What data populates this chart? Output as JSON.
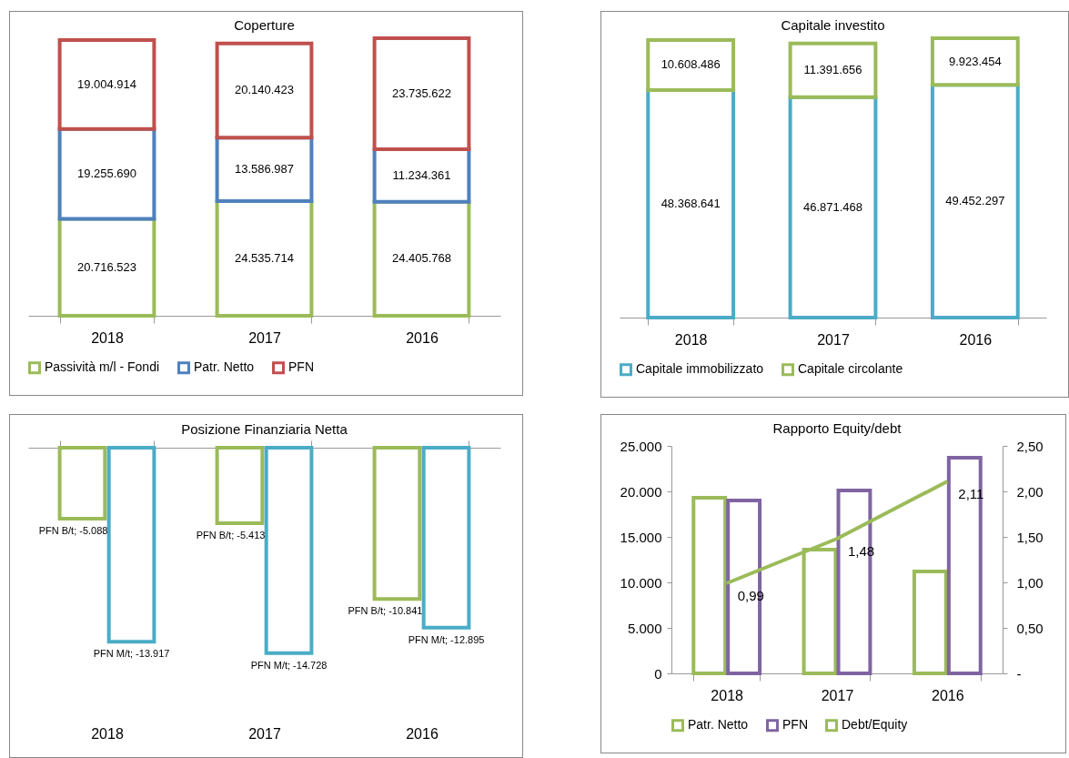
{
  "chart_data": [
    {
      "type": "bar",
      "title": "Coperture",
      "categories": [
        "2018",
        "2017",
        "2016"
      ],
      "stacked": true,
      "legend": "bottom",
      "series": [
        {
          "name": "Passività m/l - Fondi",
          "color": "#9bbb59",
          "values": [
            20716523,
            24535714,
            24405768
          ],
          "value_labels": [
            "20.716.523",
            "24.535.714",
            "24.405.768"
          ]
        },
        {
          "name": "Patr. Netto",
          "color": "#4f81bd",
          "values": [
            19255690,
            13586987,
            11234361
          ],
          "value_labels": [
            "19.255.690",
            "13.586.987",
            "11.234.361"
          ]
        },
        {
          "name": "PFN",
          "color": "#c0504d",
          "values": [
            19004914,
            20140423,
            23735622
          ],
          "value_labels": [
            "19.004.914",
            "20.140.423",
            "23.735.622"
          ]
        }
      ]
    },
    {
      "type": "bar",
      "title": "Capitale  investito",
      "categories": [
        "2018",
        "2017",
        "2016"
      ],
      "stacked": true,
      "legend": "bottom",
      "series": [
        {
          "name": "Capitale immobilizzato",
          "color": "#4bacc6",
          "values": [
            48368641,
            46871468,
            49452297
          ],
          "value_labels": [
            "48.368.641",
            "46.871.468",
            "49.452.297"
          ]
        },
        {
          "name": "Capitale circolante",
          "color": "#9bbb59",
          "values": [
            10608486,
            11391656,
            9923454
          ],
          "value_labels": [
            "10.608.486",
            "11.391.656",
            "9.923.454"
          ]
        }
      ]
    },
    {
      "type": "bar",
      "title": "Posizione Finanziaria Netta",
      "categories": [
        "2018",
        "2017",
        "2016"
      ],
      "series": [
        {
          "color": "#9bbb59",
          "values": [
            -5088,
            -5413,
            -10841
          ],
          "value_labels": [
            "PFN B/t; -5.088",
            "PFN B/t; -5.413",
            "PFN B/t; -10.841"
          ]
        },
        {
          "color": "#4bacc6",
          "values": [
            -13917,
            -14728,
            -12895
          ],
          "value_labels": [
            "PFN M/t; -13.917",
            "PFN M/t; -14.728",
            "PFN M/t; -12.895"
          ]
        }
      ]
    },
    {
      "type": "bar",
      "title": "Rapporto Equity/debt",
      "categories": [
        "2018",
        "2017",
        "2016"
      ],
      "legend": "bottom",
      "ylim": [
        0,
        25000
      ],
      "yticks": [
        0,
        {
          "value": 5000,
          "label": "5.000"
        },
        {
          "value": 10000,
          "label": "10.000"
        },
        {
          "value": 15000,
          "label": "15.000"
        },
        {
          "value": 20000,
          "label": "20.000"
        },
        {
          "value": 25000,
          "label": "25.000"
        }
      ],
      "y2lim": [
        0,
        2.5
      ],
      "y2ticks": [
        {
          "value": 0,
          "label": "-"
        },
        {
          "value": 0.5,
          "label": "0,50"
        },
        {
          "value": 1,
          "label": "1,00"
        },
        {
          "value": 1.5,
          "label": "1,50"
        },
        {
          "value": 2,
          "label": "2,00"
        },
        {
          "value": 2.5,
          "label": "2,50"
        }
      ],
      "series": [
        {
          "name": "Patr. Netto",
          "color": "#9bbb59",
          "values": [
            19300,
            13600,
            11200
          ]
        },
        {
          "name": "PFN",
          "color": "#8064a2",
          "values": [
            19000,
            20100,
            23700
          ]
        },
        {
          "name": "Debt/Equity",
          "type": "line",
          "axis": "y2",
          "color": "#9bbb59",
          "values": [
            0.99,
            1.48,
            2.11
          ],
          "value_labels": [
            "0,99",
            "1,48",
            "2,11"
          ]
        }
      ]
    }
  ]
}
